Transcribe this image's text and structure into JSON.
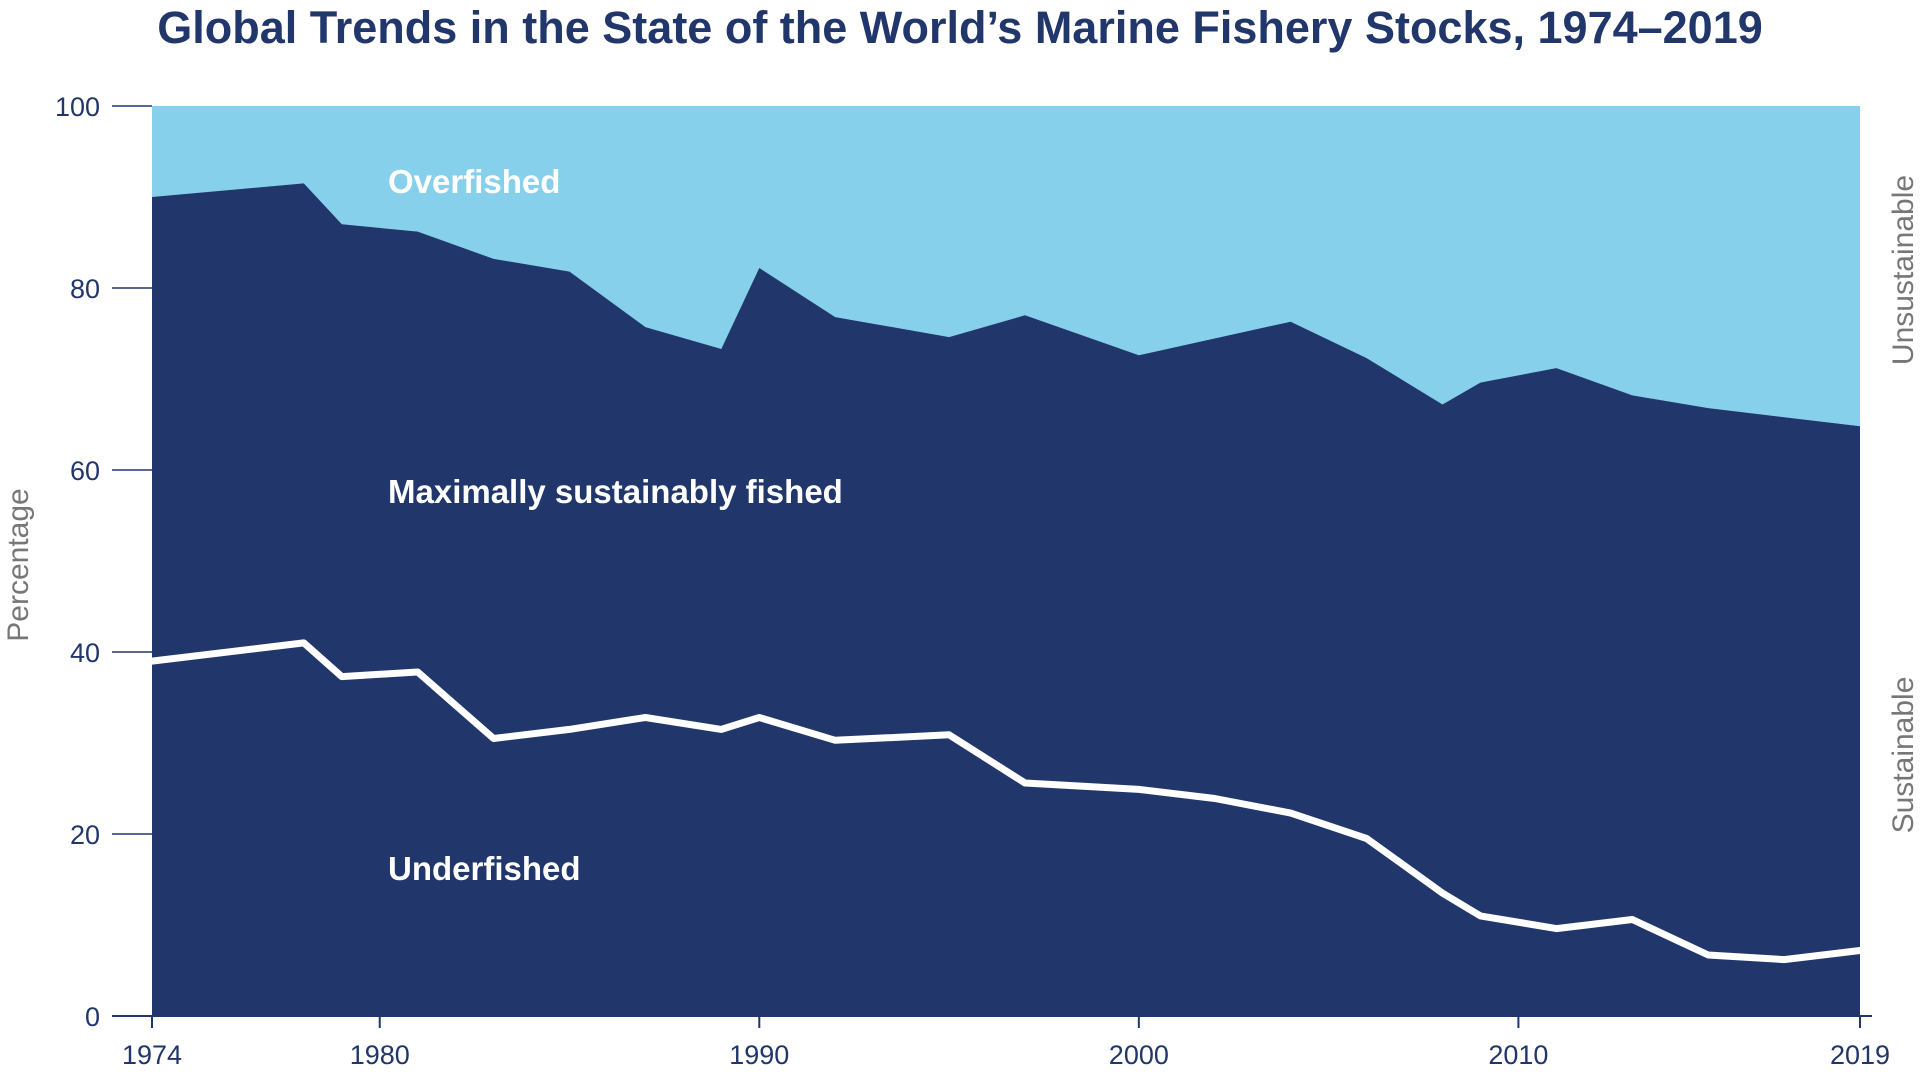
{
  "chart_data": {
    "type": "area",
    "title": "Global Trends in the State of the World’s Marine Fishery Stocks, 1974–2019",
    "ylabel": "Percentage",
    "xlim": [
      1974,
      2019
    ],
    "ylim": [
      0,
      100
    ],
    "x_ticks": [
      "1974",
      "1980",
      "1990",
      "2000",
      "2010",
      "2019"
    ],
    "y_ticks": [
      "0",
      "20",
      "40",
      "60",
      "80",
      "100"
    ],
    "side_labels": [
      "Unsustainable",
      "Sustainable"
    ],
    "band_labels": [
      "Overfished",
      "Maximally sustainably fished",
      "Underfished"
    ],
    "colors": {
      "overfished": "#87d0ec",
      "sustainable": "#21366b",
      "underfished_line": "#ffffff",
      "tick_text": "#21366b",
      "axis_title": "#777777"
    },
    "series": [
      {
        "name": "Overfished / Sustainable boundary",
        "points": [
          [
            1974,
            90
          ],
          [
            1978,
            91.5
          ],
          [
            1979,
            87
          ],
          [
            1981,
            86.2
          ],
          [
            1983,
            83.2
          ],
          [
            1985,
            81.8
          ],
          [
            1987,
            75.7
          ],
          [
            1989,
            73.3
          ],
          [
            1990,
            82.2
          ],
          [
            1992,
            76.8
          ],
          [
            1995,
            74.6
          ],
          [
            1997,
            77
          ],
          [
            2000,
            72.6
          ],
          [
            2004,
            76.3
          ],
          [
            2006,
            72.3
          ],
          [
            2008,
            67.2
          ],
          [
            2009,
            69.6
          ],
          [
            2011,
            71.2
          ],
          [
            2013,
            68.2
          ],
          [
            2015,
            66.8
          ],
          [
            2017,
            65.8
          ],
          [
            2019,
            64.8
          ]
        ]
      },
      {
        "name": "Underfished",
        "points": [
          [
            1974,
            39
          ],
          [
            1978,
            41
          ],
          [
            1979,
            37.3
          ],
          [
            1981,
            37.8
          ],
          [
            1983,
            30.5
          ],
          [
            1985,
            31.5
          ],
          [
            1987,
            32.8
          ],
          [
            1989,
            31.5
          ],
          [
            1990,
            32.8
          ],
          [
            1992,
            30.3
          ],
          [
            1995,
            30.9
          ],
          [
            1997,
            25.6
          ],
          [
            2000,
            24.9
          ],
          [
            2002,
            23.9
          ],
          [
            2004,
            22.3
          ],
          [
            2006,
            19.5
          ],
          [
            2008,
            13.5
          ],
          [
            2009,
            11
          ],
          [
            2011,
            9.6
          ],
          [
            2013,
            10.6
          ],
          [
            2015,
            6.7
          ],
          [
            2017,
            6.2
          ],
          [
            2019,
            7.2
          ]
        ]
      }
    ]
  }
}
